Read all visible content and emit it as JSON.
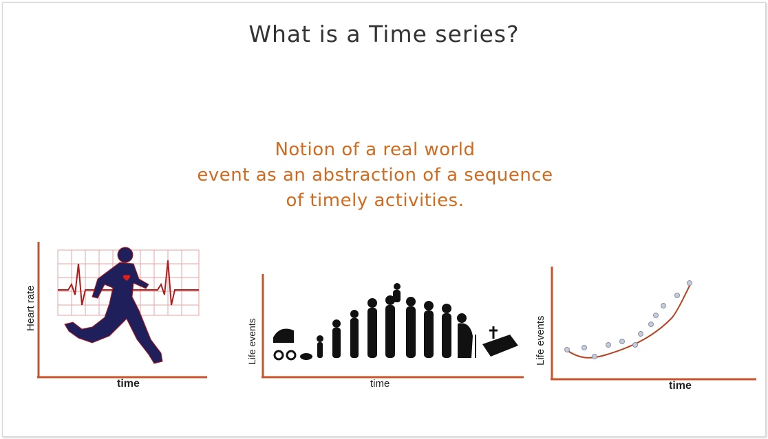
{
  "slide": {
    "title": "What is a Time series?",
    "notion_lines": [
      "Notion of a real world",
      "event as an abstraction of a sequence",
      "of timely activities."
    ]
  },
  "figures": [
    {
      "ylabel": "Heart rate",
      "xlabel": "time",
      "icons": [
        "runner-silhouette",
        "heart-icon",
        "ecg-trace"
      ]
    },
    {
      "ylabel": "Life events",
      "xlabel": "time",
      "icons": [
        "pram-icon",
        "human-lifecycle-silhouettes",
        "gravestone-icon"
      ]
    },
    {
      "ylabel": "Life events",
      "xlabel": "time",
      "icons": [
        "scatter-points",
        "trend-curve"
      ]
    }
  ],
  "colors": {
    "accent": "#d26a1e",
    "axis": "#c8532b",
    "ecg": "#b31b1b",
    "silhouette": "#1f1f5c",
    "text": "#333333"
  }
}
